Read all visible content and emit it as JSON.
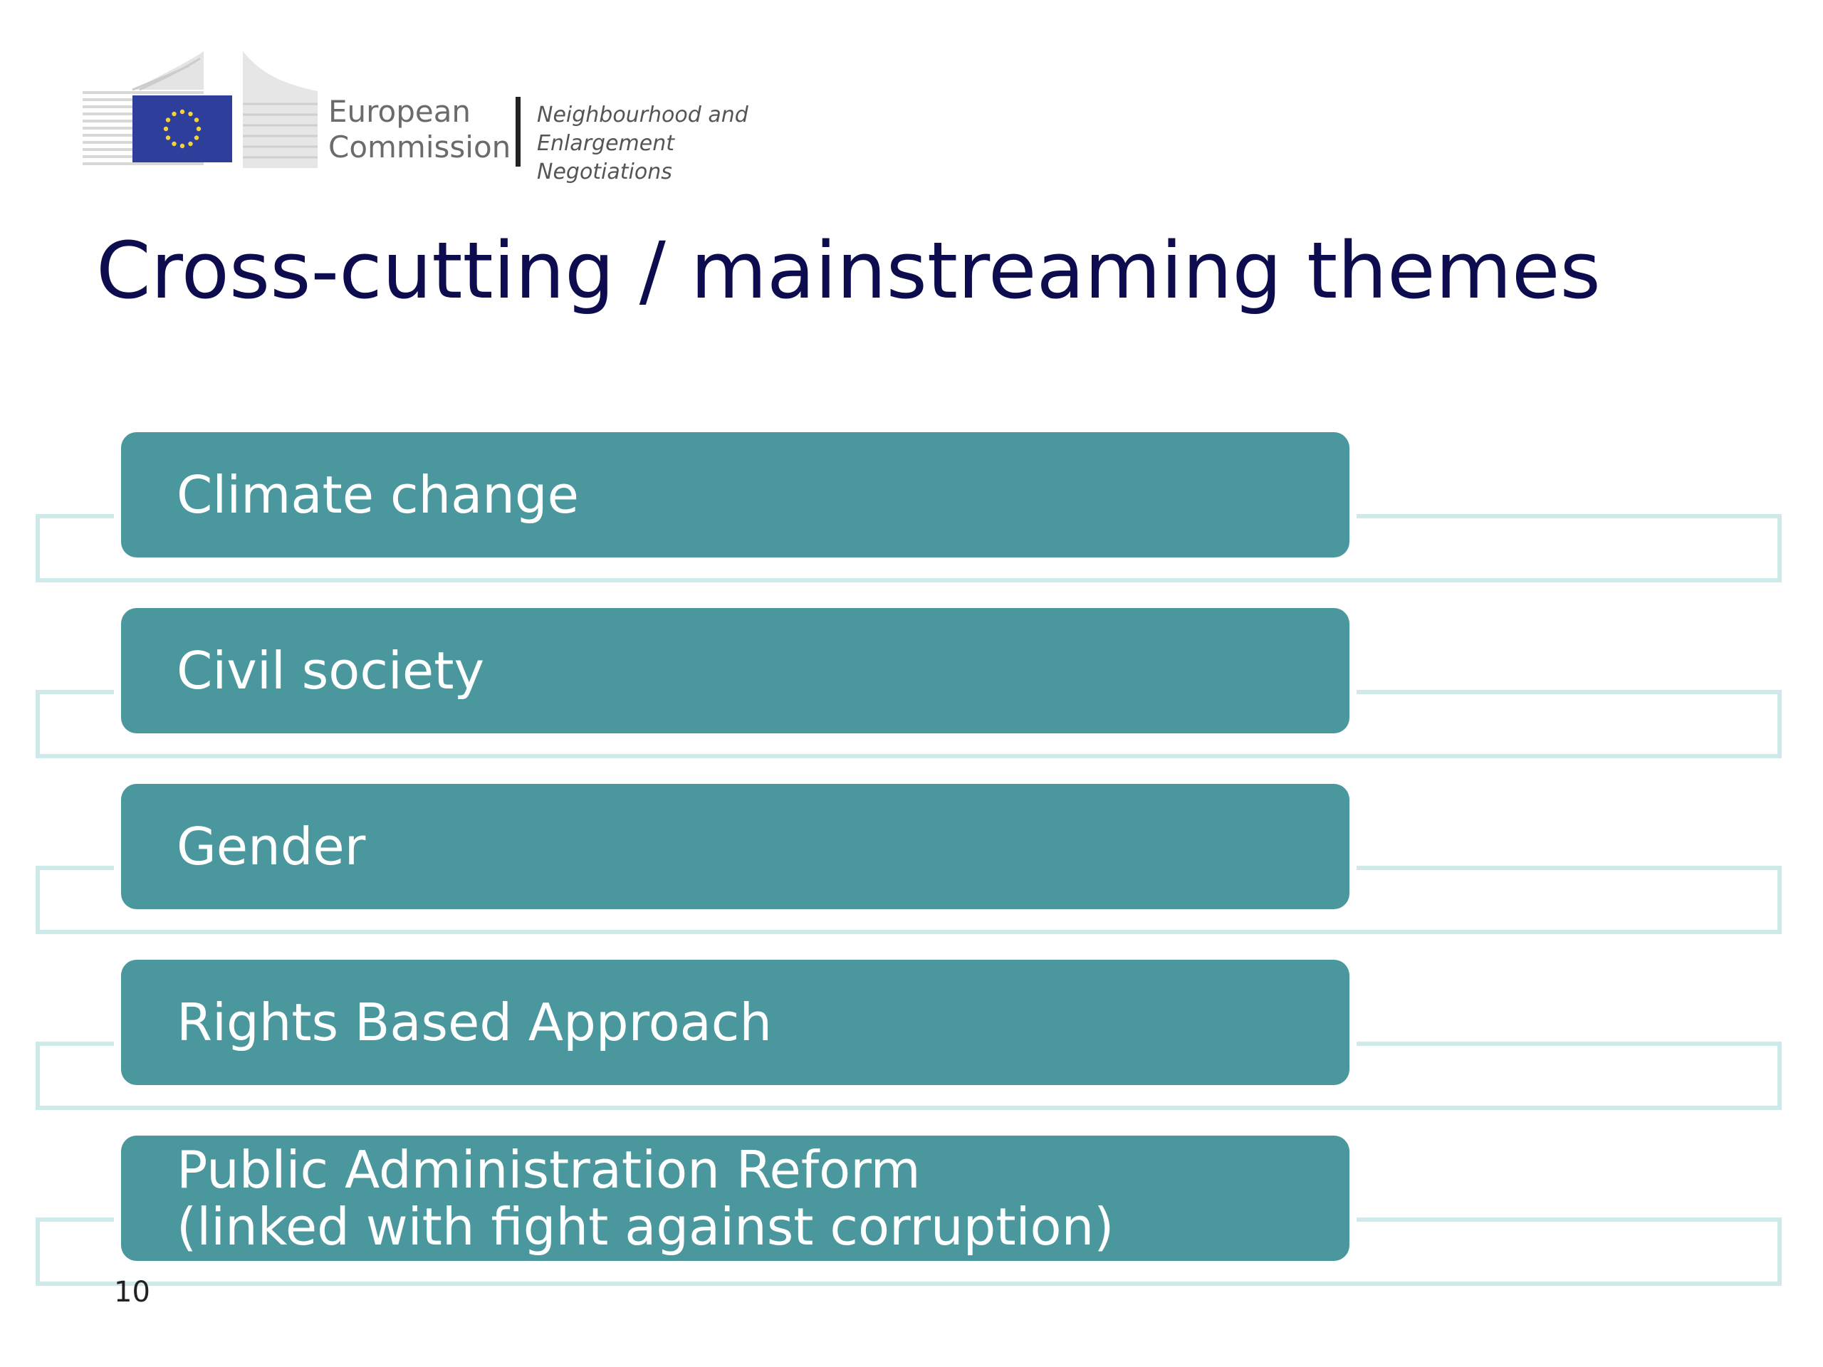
{
  "logo": {
    "org_name_line1": "European",
    "org_name_line2": "Commission",
    "department_line1": "Neighbourhood and",
    "department_line2": "Enlargement Negotiations",
    "flag_color": "#2d3f9a",
    "star_color": "#f5d23a"
  },
  "title": "Cross-cutting / mainstreaming themes",
  "themes": [
    {
      "line1": "Climate change"
    },
    {
      "line1": "Civil society"
    },
    {
      "line1": "Gender"
    },
    {
      "line1": "Rights Based Approach"
    },
    {
      "line1": "Public Administration Reform",
      "line2": "(linked with fight against corruption)"
    }
  ],
  "slide_number": "10",
  "colors": {
    "title": "#0c0c4e",
    "theme_box": "#4a979d",
    "frame": "#cfeaea"
  }
}
